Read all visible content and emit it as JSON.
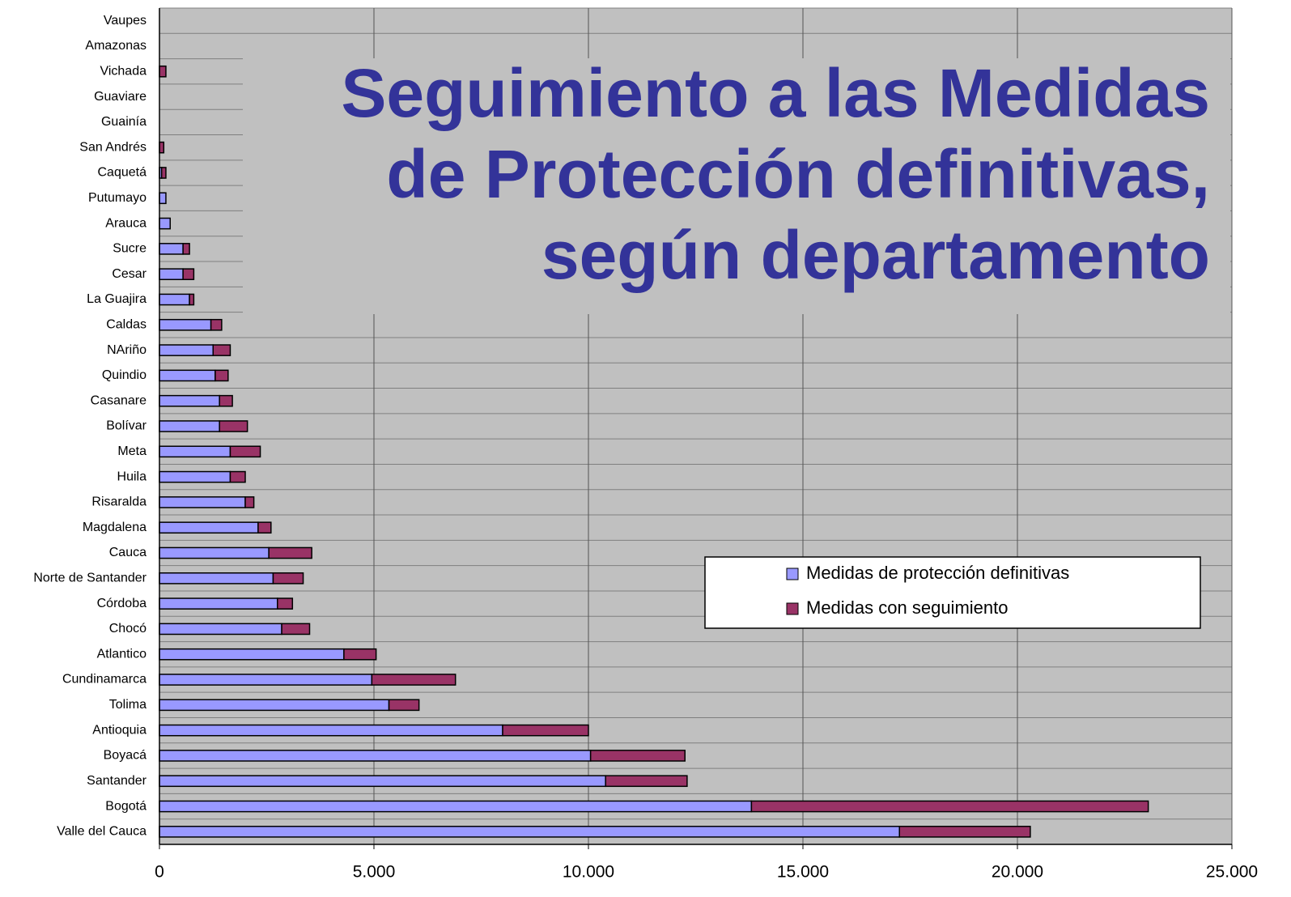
{
  "chart_data": {
    "type": "stacked-barh",
    "title": [
      "Seguimiento a las Medidas",
      "de Protección definitivas,",
      "según departamento"
    ],
    "categories": [
      "Valle del Cauca",
      "Bogotá",
      "Santander",
      "Boyacá",
      "Antioquia",
      "Tolima",
      "Cundinamarca",
      "Atlantico",
      "Chocó",
      "Córdoba",
      "Norte de Santander",
      "Cauca",
      "Magdalena",
      "Risaralda",
      "Huila",
      "Meta",
      "Bolívar",
      "Casanare",
      "Quindio",
      "NAriño",
      "Caldas",
      "La Guajira",
      "Cesar",
      "Sucre",
      "Arauca",
      "Putumayo",
      "Caquetá",
      "San Andrés",
      "Guainía",
      "Guaviare",
      "Vichada",
      "Amazonas",
      "Vaupes"
    ],
    "series": [
      {
        "name": "Medidas de protección definitivas",
        "color": "#9999ff",
        "values": [
          17250,
          13800,
          10400,
          10050,
          8000,
          5350,
          4950,
          4300,
          2850,
          2750,
          2650,
          2550,
          2300,
          2000,
          1650,
          1650,
          1400,
          1400,
          1300,
          1250,
          1200,
          700,
          550,
          550,
          250,
          150,
          50,
          0,
          0,
          0,
          0,
          0,
          0
        ]
      },
      {
        "name": "Medidas con seguimiento",
        "color": "#993366",
        "values": [
          3050,
          9250,
          1900,
          2200,
          2000,
          700,
          1950,
          750,
          650,
          350,
          700,
          1000,
          300,
          200,
          350,
          700,
          650,
          300,
          300,
          400,
          250,
          100,
          250,
          150,
          0,
          0,
          100,
          100,
          0,
          0,
          150,
          0,
          0
        ]
      }
    ],
    "xlim": [
      0,
      25000
    ],
    "xticks": [
      0,
      {
        "value": 5000,
        "label": "5.000"
      },
      {
        "value": 10000,
        "label": "10.000"
      },
      {
        "value": 15000,
        "label": "15.000"
      },
      {
        "value": 20000,
        "label": "20.000"
      },
      {
        "value": 25000,
        "label": "25.000"
      }
    ],
    "grid": true,
    "legend": "lower right",
    "plot_color": "#c0c0c0",
    "title_color": "#333399"
  }
}
